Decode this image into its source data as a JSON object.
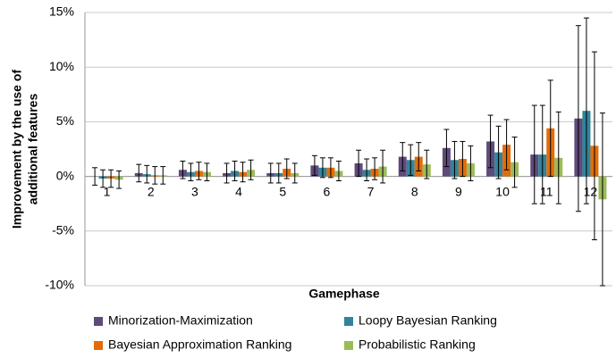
{
  "chart_data": {
    "type": "bar",
    "y_label": [
      "Improvement by the use of",
      "additional features"
    ],
    "x_label": "Gamephase",
    "categories": [
      "1",
      "2",
      "3",
      "4",
      "5",
      "6",
      "7",
      "8",
      "9",
      "10",
      "11",
      "12"
    ],
    "series": [
      {
        "name": "Minorization-Maximization",
        "color": "#604a7b",
        "values": [
          0,
          0.3,
          0.6,
          0.3,
          0.3,
          1.0,
          1.2,
          1.8,
          2.6,
          3.2,
          2.0,
          5.3
        ],
        "errors": [
          0.8,
          0.8,
          0.8,
          0.9,
          0.9,
          0.9,
          1.2,
          1.3,
          1.7,
          2.4,
          4.5,
          8.5
        ]
      },
      {
        "name": "Loopy Bayesian Ranking",
        "color": "#31849b",
        "values": [
          -0.2,
          0.2,
          0.4,
          0.5,
          0.3,
          0.8,
          0.6,
          1.5,
          1.5,
          2.2,
          2.0,
          6.0
        ],
        "errors": [
          0.8,
          0.8,
          0.8,
          0.9,
          0.9,
          0.9,
          1.0,
          1.4,
          1.7,
          2.4,
          4.5,
          8.5
        ]
      },
      {
        "name": "Bayesian Approximation Ranking",
        "color": "#e36c09",
        "values": [
          -0.2,
          0.1,
          0.5,
          0.4,
          0.7,
          0.8,
          0.7,
          1.8,
          1.6,
          2.9,
          4.4,
          2.8
        ],
        "errors": [
          0.8,
          0.8,
          0.8,
          0.9,
          0.9,
          0.9,
          1.0,
          1.3,
          1.6,
          2.3,
          4.4,
          8.6
        ]
      },
      {
        "name": "Probabilistic Ranking",
        "color": "#9bbb59",
        "values": [
          -0.3,
          0.1,
          0.4,
          0.6,
          0.3,
          0.5,
          0.9,
          1.1,
          1.2,
          1.3,
          1.7,
          -2.1
        ],
        "errors": [
          0.8,
          0.8,
          0.8,
          0.9,
          0.9,
          0.9,
          1.5,
          1.3,
          1.6,
          2.3,
          4.2,
          7.9
        ]
      }
    ],
    "ylim": [
      -10,
      15
    ],
    "yticks": [
      {
        "value": -10,
        "label": "-10%"
      },
      {
        "value": -5,
        "label": "-5%"
      },
      {
        "value": 0,
        "label": "0%"
      },
      {
        "value": 5,
        "label": "5%"
      },
      {
        "value": 10,
        "label": "10%"
      },
      {
        "value": 15,
        "label": "15%"
      }
    ],
    "grid": true,
    "legend": "bottom"
  }
}
